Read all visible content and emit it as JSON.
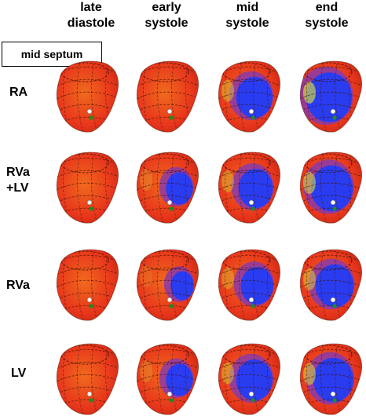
{
  "columns": [
    "late\ndiastole",
    "early\nsystole",
    "mid\nsystole",
    "end\nsystole"
  ],
  "rows": [
    "RA",
    "RVa\n+LV",
    "RVa",
    "LV"
  ],
  "callout": "mid septum",
  "colors": {
    "red": "#e8361c",
    "orange": "#f06a1e",
    "yellow": "#d8e23a",
    "blue": "#2a3cf0",
    "purple": "#8c3aa8",
    "marker_white": "#ffffff",
    "marker_green": "#1f8a2a"
  },
  "blue_fraction": [
    [
      0.0,
      0.0,
      0.55,
      0.8
    ],
    [
      0.0,
      0.3,
      0.5,
      0.7
    ],
    [
      0.0,
      0.2,
      0.45,
      0.6
    ],
    [
      0.0,
      0.3,
      0.55,
      0.65
    ]
  ]
}
